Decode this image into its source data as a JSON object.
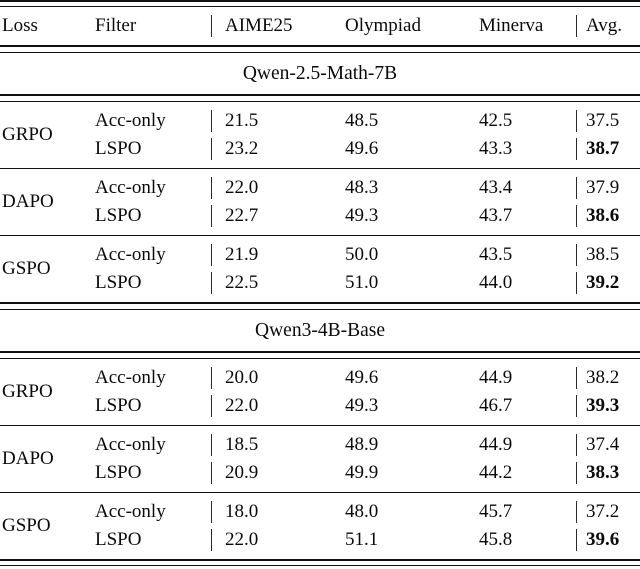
{
  "table": {
    "columns": {
      "loss": "Loss",
      "filter": "Filter",
      "aime25": "AIME25",
      "olympiad": "Olympiad",
      "minerva": "Minerva",
      "avg": "Avg."
    },
    "rule_color": "#101010",
    "text_color": "#0a0a0a",
    "sections": [
      {
        "title": "Qwen-2.5-Math-7B",
        "groups": [
          {
            "loss": "GRPO",
            "rows": [
              {
                "filter": "Acc-only",
                "aime25": "21.5",
                "olympiad": "48.5",
                "minerva": "42.5",
                "avg": "37.5",
                "avg_bold": false
              },
              {
                "filter": "LSPO",
                "aime25": "23.2",
                "olympiad": "49.6",
                "minerva": "43.3",
                "avg": "38.7",
                "avg_bold": true
              }
            ]
          },
          {
            "loss": "DAPO",
            "rows": [
              {
                "filter": "Acc-only",
                "aime25": "22.0",
                "olympiad": "48.3",
                "minerva": "43.4",
                "avg": "37.9",
                "avg_bold": false
              },
              {
                "filter": "LSPO",
                "aime25": "22.7",
                "olympiad": "49.3",
                "minerva": "43.7",
                "avg": "38.6",
                "avg_bold": true
              }
            ]
          },
          {
            "loss": "GSPO",
            "rows": [
              {
                "filter": "Acc-only",
                "aime25": "21.9",
                "olympiad": "50.0",
                "minerva": "43.5",
                "avg": "38.5",
                "avg_bold": false
              },
              {
                "filter": "LSPO",
                "aime25": "22.5",
                "olympiad": "51.0",
                "minerva": "44.0",
                "avg": "39.2",
                "avg_bold": true
              }
            ]
          }
        ]
      },
      {
        "title": "Qwen3-4B-Base",
        "groups": [
          {
            "loss": "GRPO",
            "rows": [
              {
                "filter": "Acc-only",
                "aime25": "20.0",
                "olympiad": "49.6",
                "minerva": "44.9",
                "avg": "38.2",
                "avg_bold": false
              },
              {
                "filter": "LSPO",
                "aime25": "22.0",
                "olympiad": "49.3",
                "minerva": "46.7",
                "avg": "39.3",
                "avg_bold": true
              }
            ]
          },
          {
            "loss": "DAPO",
            "rows": [
              {
                "filter": "Acc-only",
                "aime25": "18.5",
                "olympiad": "48.9",
                "minerva": "44.9",
                "avg": "37.4",
                "avg_bold": false
              },
              {
                "filter": "LSPO",
                "aime25": "20.9",
                "olympiad": "49.9",
                "minerva": "44.2",
                "avg": "38.3",
                "avg_bold": true
              }
            ]
          },
          {
            "loss": "GSPO",
            "rows": [
              {
                "filter": "Acc-only",
                "aime25": "18.0",
                "olympiad": "48.0",
                "minerva": "45.7",
                "avg": "37.2",
                "avg_bold": false
              },
              {
                "filter": "LSPO",
                "aime25": "22.0",
                "olympiad": "51.1",
                "minerva": "45.8",
                "avg": "39.6",
                "avg_bold": true
              }
            ]
          }
        ]
      }
    ]
  }
}
